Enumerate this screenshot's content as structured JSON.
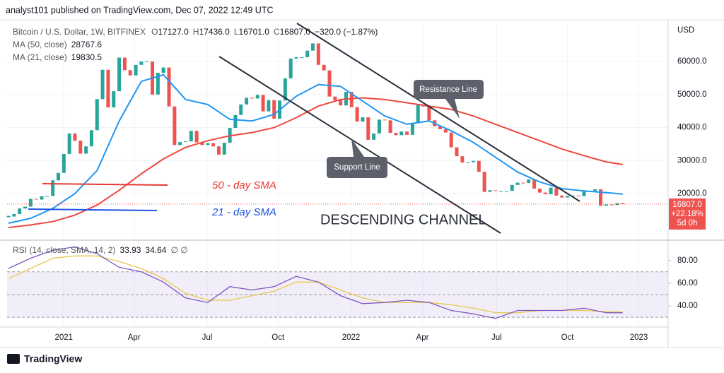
{
  "header": "analyst101 published on TradingView.com, Dec 07, 2022 12:49 UTC",
  "footer": "TradingView",
  "chart_data": [
    {
      "type": "candlestick",
      "title": "Bitcoin / U.S. Dollar, 1W, BITFINEX",
      "ohlc": [
        {
          "label": "O",
          "value": "17127.0"
        },
        {
          "label": "H",
          "value": "17436.0"
        },
        {
          "label": "L",
          "value": "16701.0"
        },
        {
          "label": "C",
          "value": "16807.0"
        }
      ],
      "change": "−320.0 (−1.87%)",
      "up_color": "#26a69a",
      "down_color": "#ef5350",
      "close": [
        13030,
        13800,
        15480,
        16050,
        18400,
        18180,
        19150,
        19270,
        24000,
        26250,
        32000,
        38200,
        36000,
        32100,
        34300,
        39200,
        48600,
        57500,
        46100,
        51000,
        61200,
        57400,
        55800,
        59000,
        60000,
        60000,
        50000,
        56600,
        58200,
        46400,
        34700,
        35600,
        35800,
        39000,
        35500,
        34700,
        35300,
        34300,
        31800,
        35400,
        39900,
        43800,
        47000,
        49000,
        48800,
        49900,
        44900,
        48300,
        42700,
        48200,
        54900,
        60900,
        61300,
        61300,
        63300,
        65500,
        59000,
        57300,
        49400,
        48300,
        46700,
        50800,
        46200,
        41800,
        43100,
        36300,
        38200,
        42400,
        42200,
        38400,
        37700,
        38800,
        37800,
        41300,
        46800,
        46400,
        42200,
        40400,
        39500,
        38500,
        34000,
        31300,
        29400,
        29500,
        29900,
        26600,
        20500,
        21000,
        20800,
        20800,
        20800,
        22600,
        23300,
        23200,
        24300,
        21500,
        20300,
        19800,
        21800,
        19400,
        18800,
        19300,
        19400,
        19200,
        20600,
        20800,
        21300,
        16300,
        16700,
        16500,
        17100,
        16807
      ],
      "lines": [
        {
          "name": "MA (50, close)",
          "value_label": "28767.6",
          "color": "#f0483e",
          "x": [
            0,
            4,
            8,
            12,
            16,
            20,
            24,
            28,
            32,
            36,
            40,
            44,
            48,
            52,
            56,
            60,
            64,
            68,
            72,
            76,
            80,
            84,
            88,
            92,
            96,
            100,
            104,
            108,
            111
          ],
          "values": [
            9700,
            10500,
            11500,
            13500,
            16500,
            21000,
            26000,
            30500,
            34000,
            36000,
            37500,
            38500,
            40000,
            43000,
            46500,
            48500,
            49000,
            48500,
            47500,
            46500,
            45500,
            43500,
            41000,
            38500,
            36000,
            33500,
            31500,
            29600,
            28767.6
          ]
        },
        {
          "name": "MA (21, close)",
          "value_label": "19830.5",
          "color": "#2196f3",
          "x": [
            0,
            4,
            8,
            12,
            16,
            20,
            24,
            28,
            32,
            36,
            40,
            44,
            48,
            52,
            56,
            60,
            64,
            68,
            72,
            76,
            80,
            84,
            88,
            92,
            96,
            100,
            104,
            108,
            111
          ],
          "values": [
            11000,
            12500,
            15500,
            20000,
            27000,
            42000,
            54000,
            56000,
            48500,
            47000,
            42500,
            42000,
            44000,
            49500,
            53000,
            52500,
            48000,
            43500,
            41000,
            42000,
            39000,
            35500,
            31000,
            26500,
            23500,
            21500,
            20800,
            20300,
            19830.5
          ]
        }
      ],
      "last_price": {
        "value": 16807,
        "label": "16807.0",
        "change": "+22.18%",
        "countdown": "5d 0h"
      },
      "y_axis_label": "USD",
      "ylim": [
        6300,
        71800
      ],
      "yticks": [
        {
          "value": 20000,
          "label": "20000.0"
        },
        {
          "value": 30000,
          "label": "30000.0"
        },
        {
          "value": 40000,
          "label": "40000.0"
        },
        {
          "value": 50000,
          "label": "50000.0"
        },
        {
          "value": 60000,
          "label": "60000.0"
        }
      ],
      "xlim": [
        -0.26,
        119.2
      ],
      "xticks": [
        {
          "value": 10,
          "label": "2021"
        },
        {
          "value": 22.7,
          "label": "Apr"
        },
        {
          "value": 35.9,
          "label": "Jul"
        },
        {
          "value": 48.7,
          "label": "Oct"
        },
        {
          "value": 61.9,
          "label": "2022"
        },
        {
          "value": 74.8,
          "label": "Apr"
        },
        {
          "value": 88.2,
          "label": "Jul"
        },
        {
          "value": 101,
          "label": "Oct"
        },
        {
          "value": 113.9,
          "label": "2023"
        }
      ],
      "grid": true,
      "annotations": [
        "Resistance Line",
        "Support Line",
        "50 - day SMA",
        "21 - day SMA",
        "DESCENDING CHANNEL"
      ]
    },
    {
      "type": "line",
      "title": "RSI (14, close, SMA, 14, 2)",
      "icons": "∅  ∅",
      "x": [
        0,
        4,
        8,
        12,
        16,
        20,
        24,
        28,
        32,
        36,
        40,
        44,
        48,
        52,
        56,
        60,
        64,
        68,
        72,
        76,
        80,
        84,
        88,
        92,
        96,
        100,
        104,
        108,
        111
      ],
      "series": [
        {
          "value_label": "33.93",
          "color": "#7e57c2",
          "values": [
            73,
            82,
            89,
            92,
            86,
            74,
            70,
            61,
            47,
            43,
            57,
            54,
            57,
            66,
            61,
            49,
            42,
            43,
            45,
            43,
            36,
            33,
            29,
            36,
            36,
            36,
            38,
            34,
            33.93
          ]
        },
        {
          "value_label": "34.64",
          "color": "#e8c84a",
          "values": [
            64,
            73,
            82,
            84,
            84,
            79,
            73,
            64,
            51,
            45,
            45,
            49,
            53,
            61,
            61,
            54,
            47,
            43,
            43,
            43,
            41,
            38,
            34,
            34,
            36,
            36,
            36,
            35,
            34.64
          ]
        }
      ],
      "band": [
        30,
        70
      ],
      "levels": [
        30,
        50,
        70
      ],
      "ylim": [
        22,
        96
      ],
      "yticks": [
        {
          "value": 40,
          "label": "40.00"
        },
        {
          "value": 60,
          "label": "60.00"
        },
        {
          "value": 80,
          "label": "80.00"
        }
      ],
      "xlim": [
        -0.26,
        119.2
      ]
    }
  ]
}
